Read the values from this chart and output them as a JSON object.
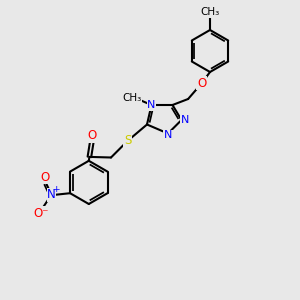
{
  "bg_color": "#e8e8e8",
  "bond_color": "#000000",
  "N_color": "#0000ff",
  "O_color": "#ff0000",
  "S_color": "#cccc00",
  "font_size": 7.5,
  "line_width": 1.5,
  "figsize": [
    3.0,
    3.0
  ],
  "dpi": 100,
  "xlim": [
    0,
    10
  ],
  "ylim": [
    0,
    10
  ]
}
